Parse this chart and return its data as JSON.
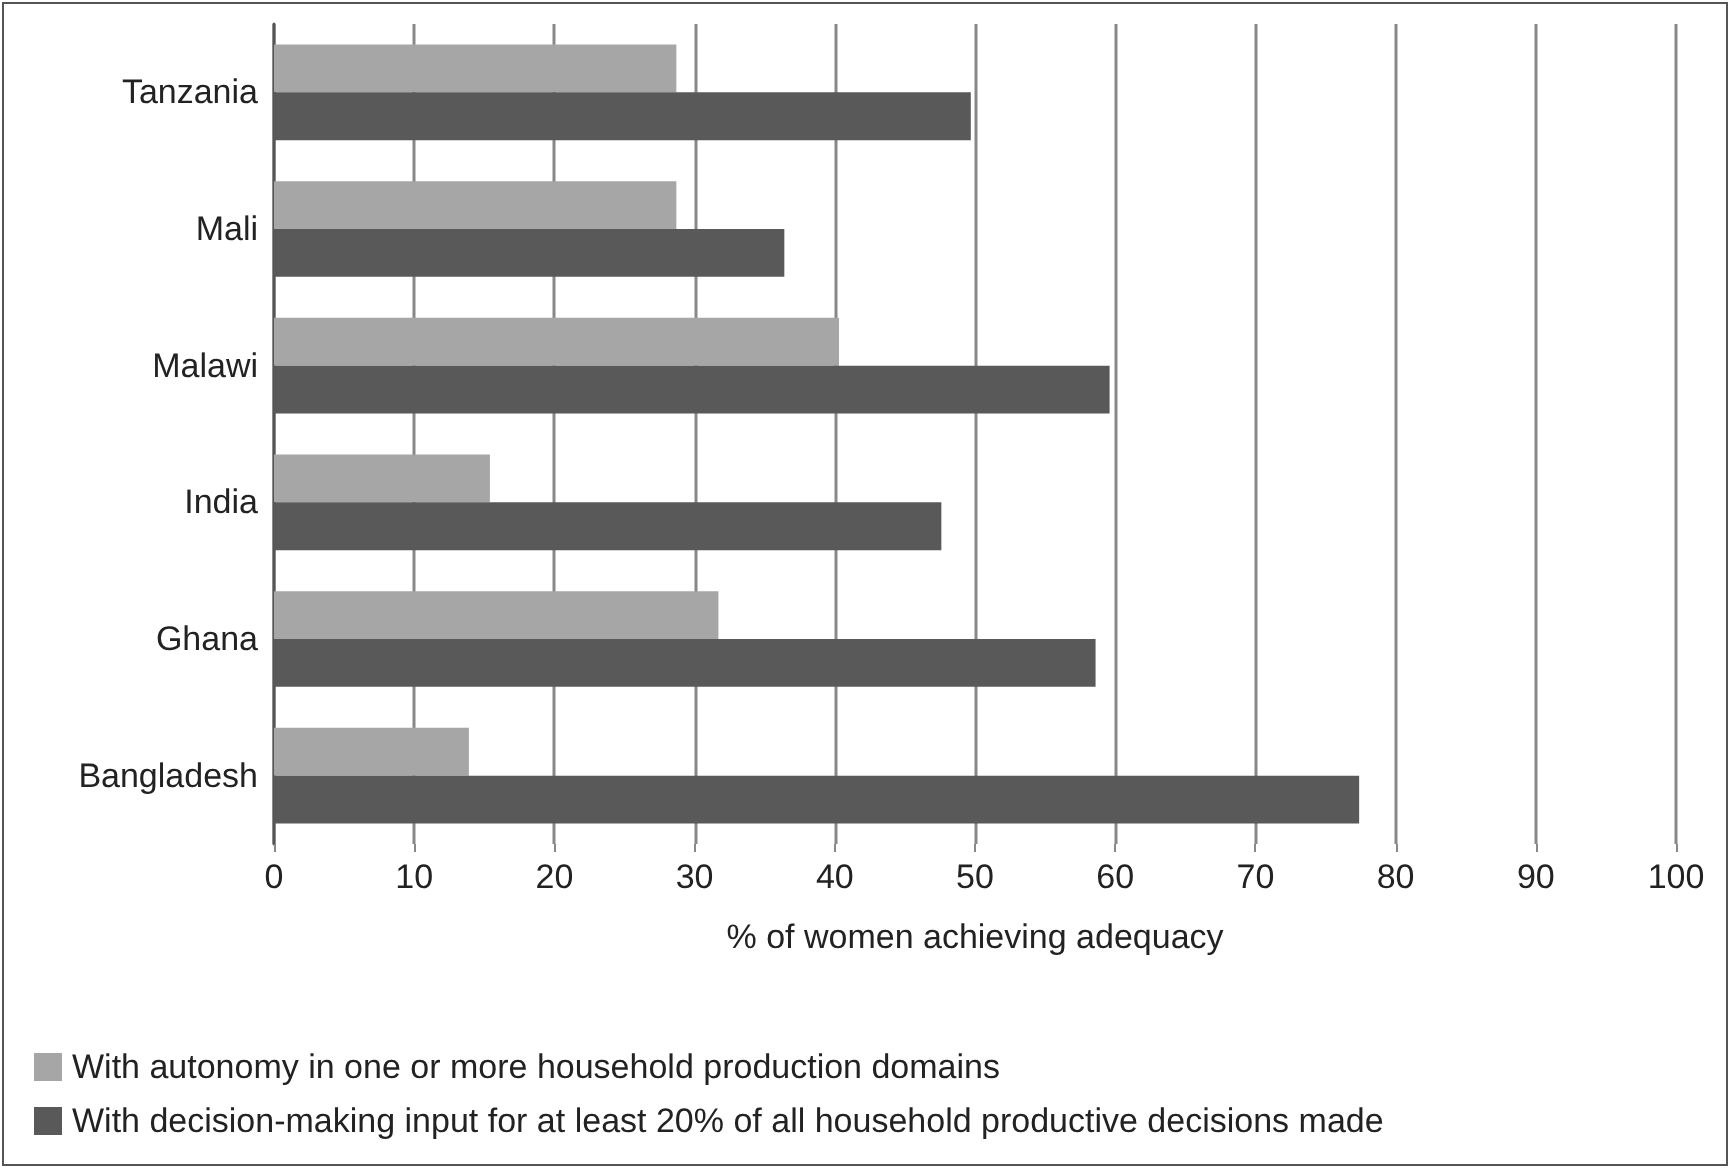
{
  "chart_data": {
    "type": "bar",
    "orientation": "horizontal",
    "xlabel": "% of women achieving adequacy",
    "categories": [
      "Tanzania",
      "Mali",
      "Malawi",
      "India",
      "Ghana",
      "Bangladesh"
    ],
    "series": [
      {
        "name": "With autonomy in one or more household production domains",
        "color": "#a6a6a6",
        "values": [
          28.7,
          28.7,
          40.3,
          15.4,
          31.7,
          13.9
        ]
      },
      {
        "name": "With decision-making input for at least 20% of all household productive decisions made",
        "color": "#595959",
        "values": [
          49.7,
          36.4,
          59.6,
          47.6,
          58.6,
          77.4
        ]
      }
    ],
    "xlim": [
      0,
      100
    ],
    "xticks": [
      0,
      10,
      20,
      30,
      40,
      50,
      60,
      70,
      80,
      90,
      100
    ],
    "grid": "x",
    "legend": "bottom"
  }
}
